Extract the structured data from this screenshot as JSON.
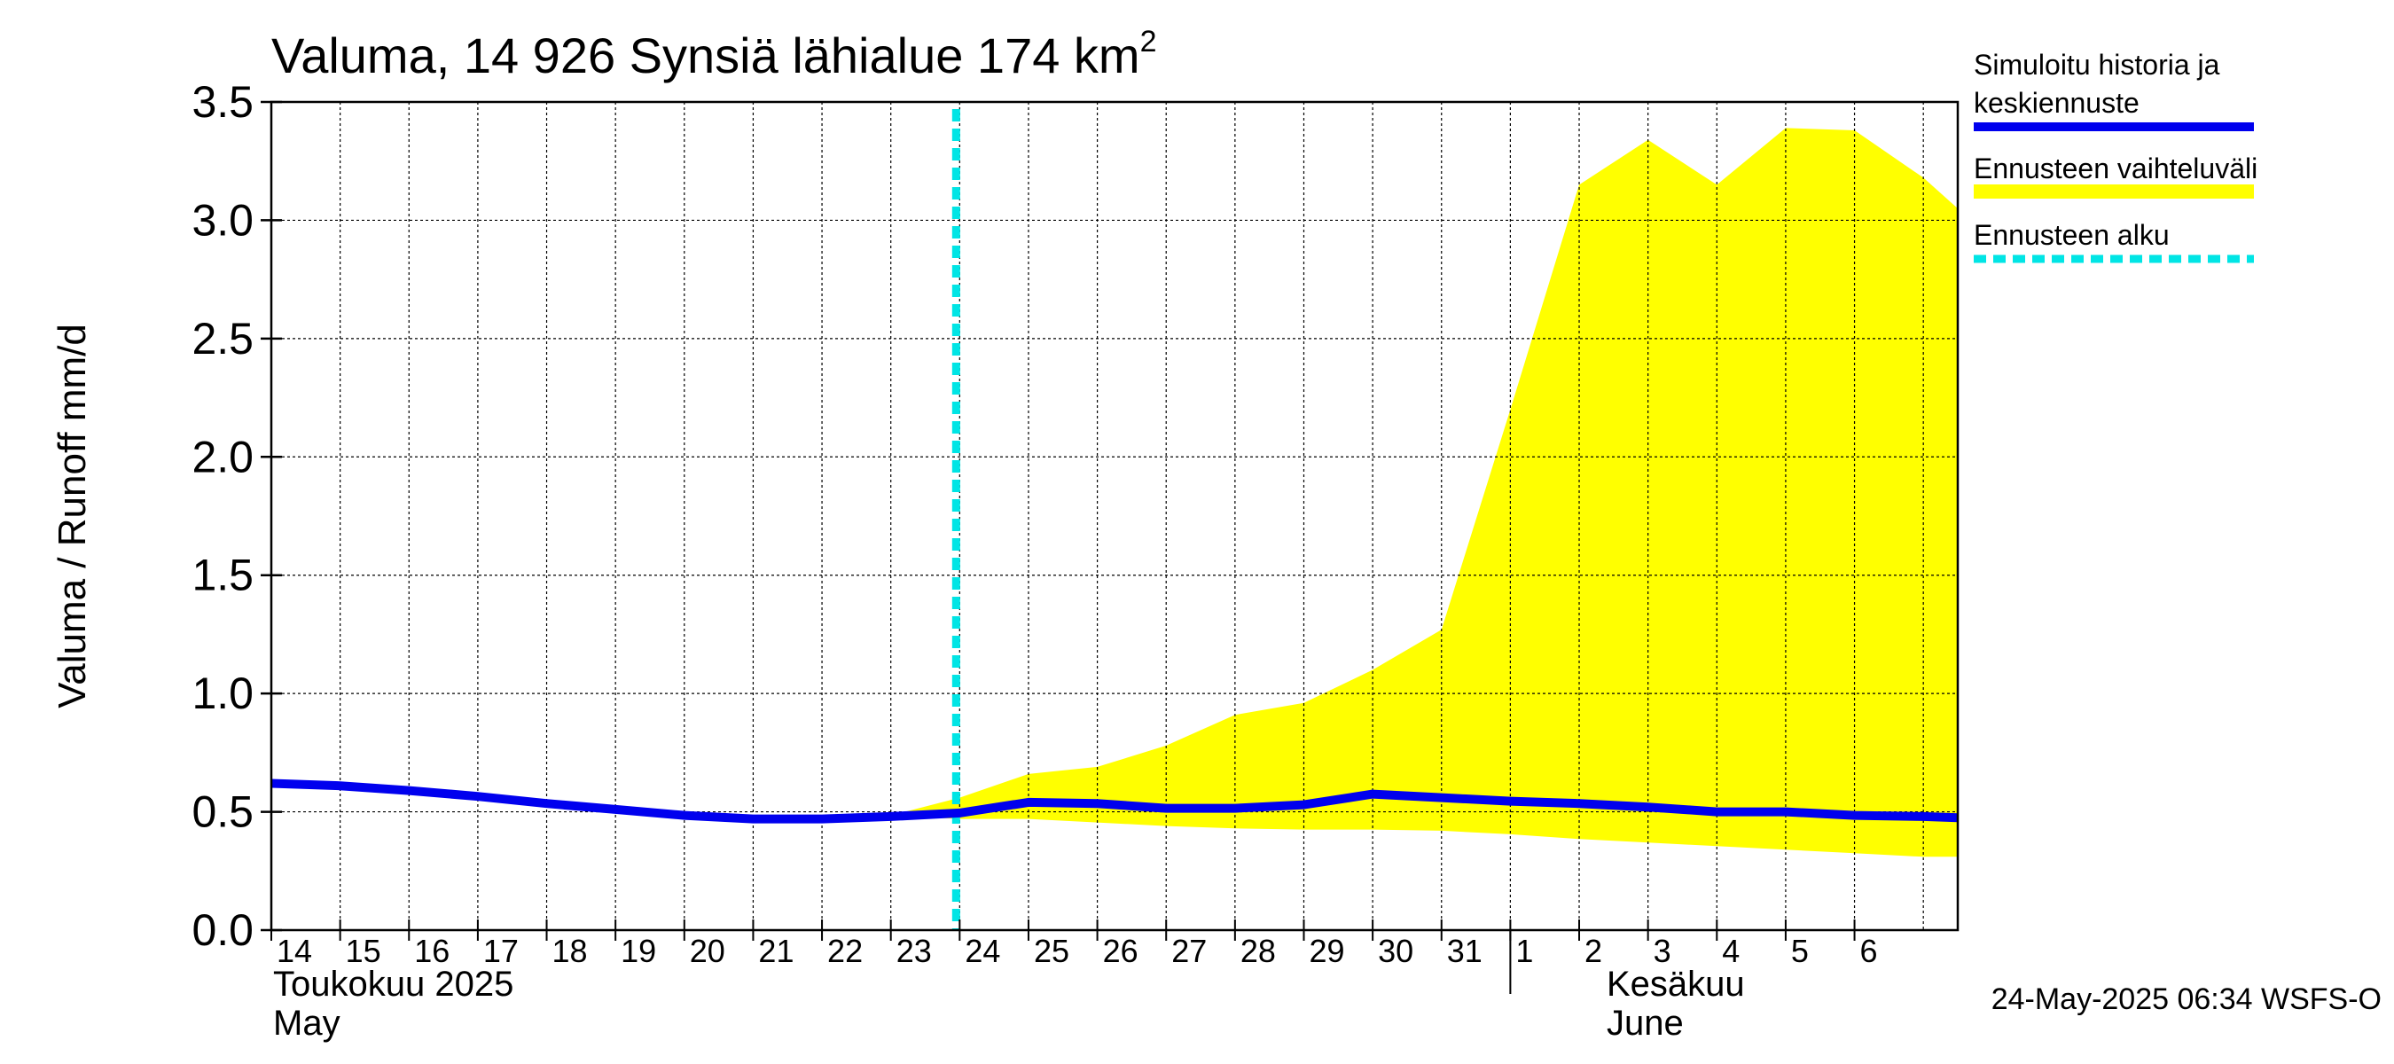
{
  "title": {
    "text": "Valuma, 14 926 Synsiä lähialue 174 km",
    "superscript": "2"
  },
  "ylabel": "Valuma / Runoff    mm/d",
  "month_labels": {
    "may_fi": "Toukokuu  2025",
    "may_en": "May",
    "june_fi": "Kesäkuu",
    "june_en": "June"
  },
  "legend": {
    "items": [
      {
        "label_line1": "Simuloitu historia ja",
        "label_line2": "keskiennuste",
        "color": "#0000ee",
        "style": "solid"
      },
      {
        "label_line1": "Ennusteen vaihteluväli",
        "label_line2": "",
        "color": "#ffff00",
        "style": "band"
      },
      {
        "label_line1": "Ennusteen alku",
        "label_line2": "",
        "color": "#00e5e5",
        "style": "dashed"
      }
    ]
  },
  "footer": "24-May-2025 06:34 WSFS-O",
  "chart_data": {
    "type": "area",
    "title": "Valuma, 14 926 Synsiä lähialue 174 km²",
    "xlabel": "",
    "ylabel": "Valuma / Runoff    mm/d",
    "ylim": [
      0,
      3.5
    ],
    "xlim": [
      0,
      24.5
    ],
    "yticks": [
      0.0,
      0.5,
      1.0,
      1.5,
      2.0,
      2.5,
      3.0,
      3.5
    ],
    "ytick_labels": [
      "0.0",
      "0.5",
      "1.0",
      "1.5",
      "2.0",
      "2.5",
      "3.0",
      "3.5"
    ],
    "xtick_labels": [
      "14",
      "15",
      "16",
      "17",
      "18",
      "19",
      "20",
      "21",
      "22",
      "23",
      "24",
      "25",
      "26",
      "27",
      "28",
      "29",
      "30",
      "31",
      "1",
      "2",
      "3",
      "4",
      "5",
      "6"
    ],
    "month_boundary_day_index": 18,
    "grid": true,
    "forecast_start": 10,
    "series": [
      {
        "name": "Simuloitu historia ja keskiennuste",
        "color": "#0000ee",
        "x": [
          0,
          1,
          2,
          3,
          4,
          5,
          6,
          7,
          8,
          9,
          10,
          11,
          12,
          13,
          14,
          15,
          16,
          17,
          18,
          19,
          20,
          21,
          22,
          23,
          24,
          24.5
        ],
        "y": [
          0.62,
          0.61,
          0.59,
          0.565,
          0.535,
          0.51,
          0.485,
          0.47,
          0.47,
          0.48,
          0.495,
          0.54,
          0.535,
          0.515,
          0.515,
          0.53,
          0.575,
          0.56,
          0.545,
          0.535,
          0.52,
          0.5,
          0.5,
          0.485,
          0.48,
          0.475
        ]
      }
    ],
    "band": {
      "name": "Ennusteen vaihteluväli",
      "color": "#ffff00",
      "x": [
        9,
        10,
        11,
        12,
        13,
        14,
        15,
        16,
        17,
        18,
        19,
        20,
        21,
        22,
        23,
        24,
        24.5
      ],
      "upper": [
        0.485,
        0.56,
        0.66,
        0.69,
        0.78,
        0.91,
        0.96,
        1.1,
        1.27,
        2.2,
        3.15,
        3.34,
        3.15,
        3.39,
        3.38,
        3.18,
        3.05
      ],
      "lower": [
        0.485,
        0.47,
        0.47,
        0.455,
        0.44,
        0.43,
        0.425,
        0.425,
        0.42,
        0.405,
        0.385,
        0.37,
        0.355,
        0.34,
        0.325,
        0.31,
        0.31
      ]
    }
  }
}
